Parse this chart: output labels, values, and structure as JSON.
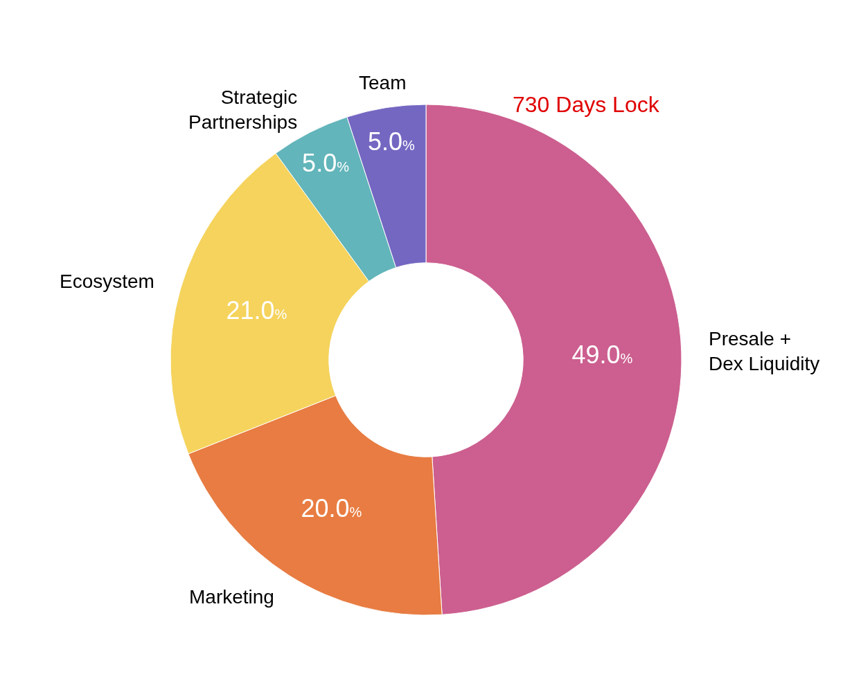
{
  "chart_data": {
    "type": "donut",
    "categories": [
      "Presale +\nDex Liquidity",
      "Marketing",
      "Ecosystem",
      "Strategic\nPartnerships",
      "Team"
    ],
    "values": [
      49,
      20,
      21,
      5,
      5
    ],
    "value_labels": [
      "49.0%",
      "20.0%",
      "21.0%",
      "5.0%",
      "5.0%"
    ],
    "colors": [
      "#cc5f8f",
      "#e87c42",
      "#f5d35c",
      "#62b5ba",
      "#7467c2"
    ],
    "annotations": [
      "730 Days Lock"
    ],
    "legend": false
  }
}
